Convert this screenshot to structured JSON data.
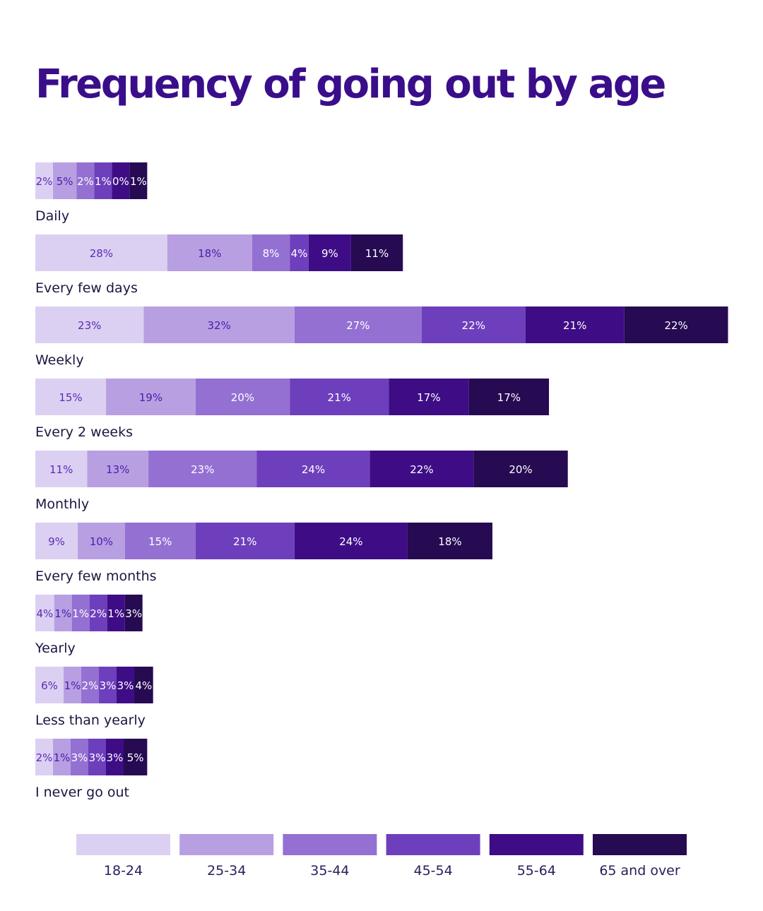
{
  "chart_data": {
    "type": "bar",
    "orientation": "horizontal",
    "stacked": true,
    "title": "Frequency of going out by age",
    "categories": [
      "Daily",
      "Every few days",
      "Weekly",
      "Every 2 weeks",
      "Monthly",
      "Every few months",
      "Yearly",
      "Less than yearly",
      "I never go out"
    ],
    "series": [
      {
        "name": "18-24",
        "color": "#dcd0f2",
        "label_color": "#5a2bb8",
        "values": [
          2,
          28,
          23,
          15,
          11,
          9,
          4,
          6,
          2
        ]
      },
      {
        "name": "25-34",
        "color": "#b89fe2",
        "label_color": "#4a1eaa",
        "values": [
          5,
          18,
          32,
          19,
          13,
          10,
          1,
          1,
          1
        ]
      },
      {
        "name": "35-44",
        "color": "#9470d2",
        "label_color": "#ffffff",
        "values": [
          2,
          8,
          27,
          20,
          23,
          15,
          1,
          2,
          3
        ]
      },
      {
        "name": "45-54",
        "color": "#6e3fbc",
        "label_color": "#ffffff",
        "values": [
          1,
          4,
          22,
          21,
          24,
          21,
          2,
          3,
          3
        ]
      },
      {
        "name": "55-64",
        "color": "#3e0d86",
        "label_color": "#ffffff",
        "values": [
          0,
          9,
          21,
          17,
          22,
          24,
          1,
          3,
          3
        ]
      },
      {
        "name": "65 and over",
        "color": "#260a52",
        "label_color": "#ffffff",
        "values": [
          1,
          11,
          22,
          17,
          20,
          18,
          3,
          4,
          5
        ]
      }
    ],
    "value_suffix": "%",
    "legend_position": "bottom",
    "grid": false
  }
}
